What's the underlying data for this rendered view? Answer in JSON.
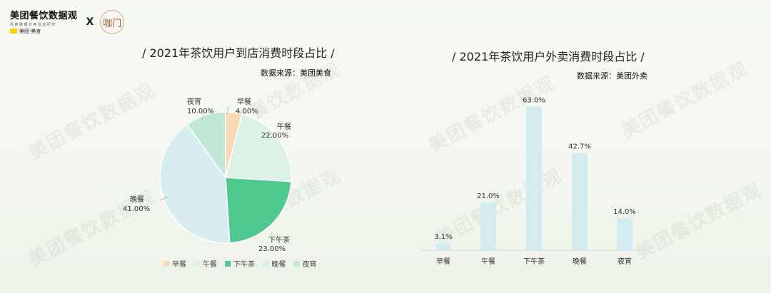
{
  "header": {
    "brand_name": "美团餐饮数据观",
    "brand_sub": "外卖数据外卖信息研究",
    "brand_meituan": "美团·美食",
    "cross": "X",
    "partner_mark": "咖门"
  },
  "watermark": "美团餐饮数据观",
  "chart_data": [
    {
      "type": "pie",
      "title": "/ 2021年茶饮用户到店消费时段占比 /",
      "source": "数据来源：美团美食",
      "legend_position": "bottom",
      "categories": [
        "早餐",
        "午餐",
        "下午茶",
        "晚餐",
        "夜宵"
      ],
      "values": [
        4.0,
        22.0,
        23.0,
        41.0,
        10.0
      ],
      "value_labels": [
        "4.00%",
        "22.00%",
        "23.00%",
        "41.00%",
        "10.00%"
      ],
      "colors": [
        "#f7d9b5",
        "#ddf1e6",
        "#4ec88f",
        "#d9ecef",
        "#bfe8d6"
      ]
    },
    {
      "type": "bar",
      "title": "/ 2021年茶饮用户外卖消费时段占比 /",
      "source": "数据来源：美团外卖",
      "categories": [
        "早餐",
        "午餐",
        "下午茶",
        "晚餐",
        "夜宵"
      ],
      "values": [
        3.1,
        21.0,
        63.0,
        42.7,
        14.0
      ],
      "value_labels": [
        "3.1%",
        "21.0%",
        "63.0%",
        "42.7%",
        "14.0%"
      ],
      "ylim": [
        0,
        66
      ],
      "grid": false,
      "bar_color": "#d3ecef"
    }
  ]
}
